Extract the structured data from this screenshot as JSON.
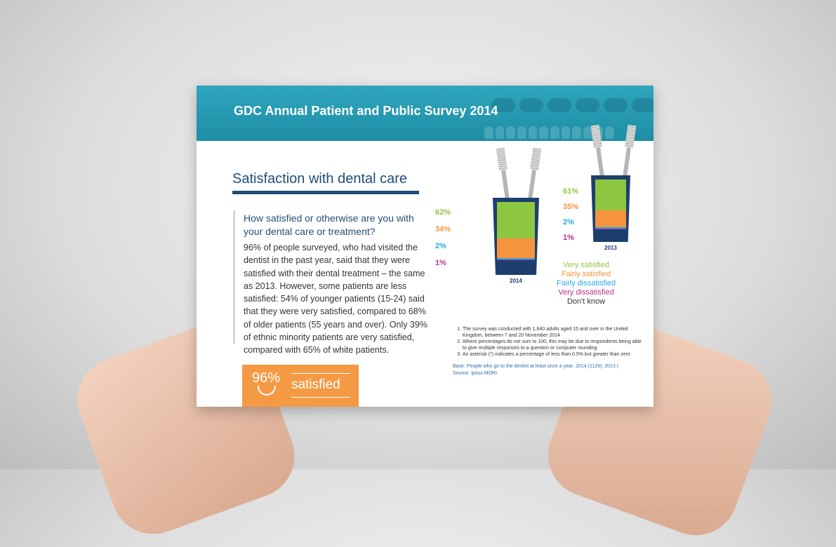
{
  "header": {
    "title": "GDC Annual Patient and Public Survey 2014"
  },
  "section": {
    "heading": "Satisfaction with dental care",
    "question": "How satisfied or otherwise are you with your dental care or treatment?",
    "body": "96% of people surveyed, who had visited the dentist in the past year, said that they were satisfied with their dental treatment – the same as 2013. However, some patients are less satisfied: 54% of younger patients (15-24) said that they were very satisfied, compared to 68% of older patients (55 years and over). Only 39% of ethnic minority patients are very satisfied, compared with 65% of white patients."
  },
  "badge": {
    "value": "96%",
    "label": "satisfied"
  },
  "chart_data": {
    "type": "bar",
    "categories": [
      "2014",
      "2013"
    ],
    "series": [
      {
        "name": "Very satisfied",
        "color": "#8dc63f",
        "values": [
          62,
          61
        ]
      },
      {
        "name": "Fairly satisfied",
        "color": "#f7943f",
        "values": [
          34,
          35
        ]
      },
      {
        "name": "Fairly dissatisfied",
        "color": "#27a9e1",
        "values": [
          2,
          2
        ]
      },
      {
        "name": "Very dissatisfied",
        "color": "#b5338a",
        "values": [
          1,
          1
        ]
      },
      {
        "name": "Don't know",
        "color": "#333333",
        "values": [
          null,
          null
        ]
      }
    ],
    "labels": {
      "2014": [
        "62%",
        "34%",
        "2%",
        "1%"
      ],
      "2013": [
        "61%",
        "35%",
        "2%",
        "1%"
      ]
    }
  },
  "notes": [
    "The survey was conducted with 1,640 adults aged 15 and over in the United Kingdom, between 7 and 20 November 2014",
    "Where percentages do not sum to 100, this may be due to respondents being able to give multiple responses to a question or computer rounding",
    "An asterisk (*) indicates a percentage of less than 0.5% but greater than zero"
  ],
  "base": "Base: People who go to the dentist at least once a year: 2014 (1129); 2013 (",
  "source": "Source: Ipsos MORI"
}
